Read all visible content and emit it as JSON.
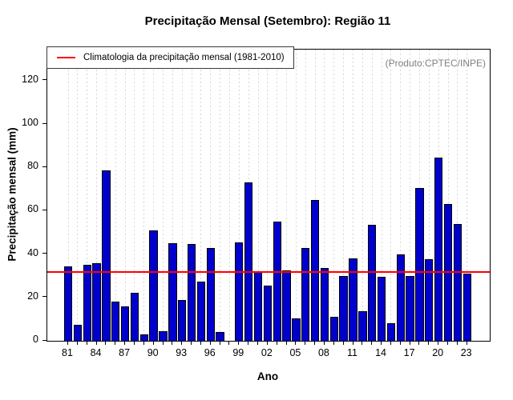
{
  "title": "Precipitação Mensal (Setembro): Região 11",
  "annotation": "(Produto:CPTEC/INPE)",
  "legend": {
    "label": "Climatologia da precipitação mensal (1981-2010)",
    "line_color": "#FF0000"
  },
  "axes": {
    "x_label": "Ano",
    "y_label": "Precipitação mensal (mm)",
    "y_ticks": [
      0,
      20,
      40,
      60,
      80,
      100,
      120
    ],
    "x_tick_labels": [
      "81",
      "84",
      "87",
      "90",
      "93",
      "96",
      "99",
      "02",
      "05",
      "08",
      "11",
      "14",
      "17",
      "20",
      "23"
    ]
  },
  "colors": {
    "bar_fill": "#0000CC",
    "bar_border": "#000000",
    "grid": "#D6D6D6",
    "climatology_line": "#FF0000",
    "annotation_text": "#808080"
  },
  "chart_data": {
    "type": "bar",
    "title": "Precipitação Mensal (Setembro): Região 11",
    "xlabel": "Ano",
    "ylabel": "Precipitação mensal (mm)",
    "x": [
      1981,
      1982,
      1983,
      1984,
      1985,
      1986,
      1987,
      1988,
      1989,
      1990,
      1991,
      1992,
      1993,
      1994,
      1995,
      1996,
      1997,
      1998,
      1999,
      2000,
      2001,
      2002,
      2003,
      2004,
      2005,
      2006,
      2007,
      2008,
      2009,
      2010,
      2011,
      2012,
      2013,
      2014,
      2015,
      2016,
      2017,
      2018,
      2019,
      2020,
      2021,
      2022,
      2023
    ],
    "values": [
      34.5,
      7.5,
      35,
      36,
      78.5,
      18,
      16,
      22,
      3,
      51,
      4.5,
      45,
      19,
      44.5,
      27.5,
      43,
      4,
      null,
      45.5,
      73,
      32,
      25.5,
      55,
      32.5,
      10.5,
      43,
      65,
      33.5,
      11,
      30,
      38,
      13.5,
      53.5,
      29.5,
      8,
      40,
      30,
      70.5,
      37.5,
      84.5,
      63,
      54,
      31
    ],
    "missing_years": [
      1998
    ],
    "ylim": [
      0,
      134
    ],
    "y_tick_step": 20,
    "x_tick_label_step": 3,
    "reference_line": {
      "value": 31.6,
      "color": "#FF0000",
      "label": "Climatologia da precipitação mensal (1981-2010)"
    },
    "legend_position": "top-left",
    "grid": "vertical-dashed"
  }
}
